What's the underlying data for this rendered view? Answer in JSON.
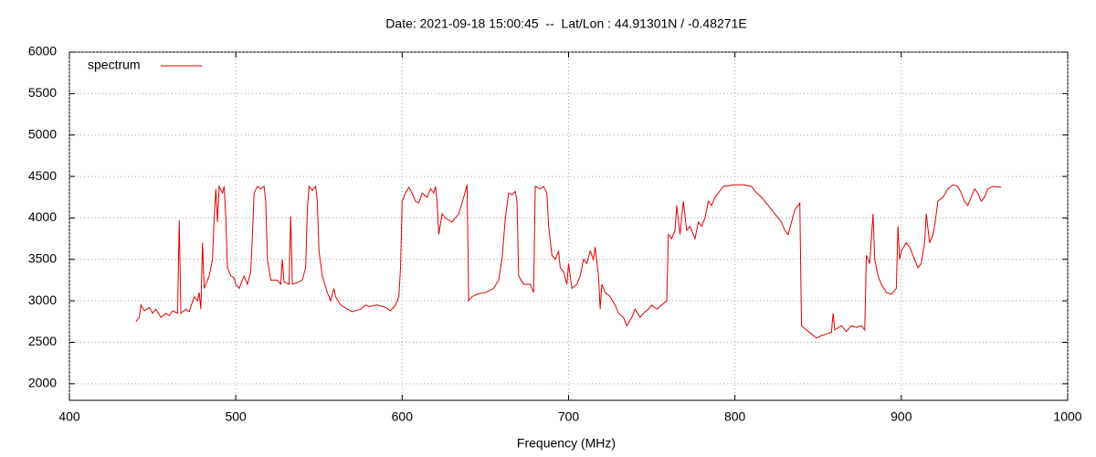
{
  "chart_data": {
    "type": "line",
    "title": "Date: 2021-09-18 15:00:45  --  Lat/Lon : 44.91301N / -0.48271E",
    "x_label": "Frequency (MHz)",
    "xlim": [
      400,
      1000
    ],
    "xticks": [
      400,
      500,
      600,
      700,
      800,
      900,
      1000
    ],
    "ylim": [
      1800,
      6000
    ],
    "yticks": [
      2000,
      2500,
      3000,
      3500,
      4000,
      4500,
      5000,
      5500,
      6000
    ],
    "grid": true,
    "legend": "top-left",
    "x": [
      440,
      442,
      443,
      445,
      448,
      450,
      452,
      455,
      458,
      460,
      462,
      465,
      466,
      467,
      470,
      472,
      475,
      477,
      478,
      479,
      480,
      481,
      484,
      486,
      487,
      488,
      489,
      490,
      492,
      493,
      494,
      495,
      497,
      499,
      500,
      502,
      505,
      507,
      509,
      510,
      511,
      513,
      515,
      517,
      518,
      519,
      521,
      525,
      527,
      528,
      529,
      532,
      533,
      534,
      537,
      540,
      542,
      543,
      544,
      546,
      548,
      549,
      550,
      552,
      555,
      557,
      559,
      560,
      563,
      567,
      570,
      575,
      578,
      580,
      585,
      590,
      593,
      596,
      598,
      599,
      600,
      602,
      604,
      606,
      608,
      610,
      612,
      615,
      617,
      619,
      620,
      621,
      622,
      624,
      626,
      630,
      634,
      637,
      639,
      640,
      642,
      645,
      650,
      655,
      658,
      660,
      662,
      664,
      666,
      668,
      669,
      670,
      673,
      677,
      679,
      680,
      683,
      685,
      687,
      688,
      690,
      692,
      694,
      695,
      697,
      699,
      700,
      702,
      705,
      707,
      709,
      711,
      713,
      715,
      716,
      718,
      719,
      720,
      722,
      725,
      728,
      730,
      733,
      735,
      738,
      740,
      743,
      745,
      748,
      750,
      753,
      756,
      759,
      760,
      762,
      764,
      765,
      767,
      769,
      771,
      773,
      776,
      778,
      780,
      782,
      784,
      786,
      788,
      790,
      793,
      797,
      800,
      805,
      810,
      813,
      816,
      818,
      820,
      822,
      824,
      826,
      828,
      830,
      832,
      834,
      836,
      838,
      839,
      840,
      843,
      846,
      849,
      852,
      855,
      858,
      859,
      860,
      864,
      867,
      870,
      873,
      876,
      878,
      879,
      881,
      883,
      884,
      886,
      888,
      891,
      894,
      897,
      898,
      899,
      900,
      903,
      905,
      908,
      910,
      912,
      914,
      915,
      917,
      919,
      920,
      922,
      925,
      928,
      931,
      934,
      936,
      938,
      940,
      942,
      944,
      946,
      948,
      950,
      952,
      955,
      960
    ],
    "series": [
      {
        "name": "spectrum",
        "color": "#e00000",
        "values": [
          2750,
          2800,
          2950,
          2880,
          2920,
          2850,
          2900,
          2800,
          2850,
          2820,
          2880,
          2850,
          3970,
          2850,
          2900,
          2870,
          3050,
          3000,
          3100,
          2900,
          3700,
          3150,
          3300,
          3500,
          4000,
          4350,
          3950,
          4380,
          4300,
          4380,
          4000,
          3400,
          3300,
          3280,
          3200,
          3150,
          3300,
          3200,
          3350,
          3800,
          4300,
          4380,
          4350,
          4380,
          4200,
          3500,
          3250,
          3250,
          3200,
          3500,
          3230,
          3200,
          4020,
          3200,
          3220,
          3250,
          3400,
          4100,
          4380,
          4330,
          4380,
          4200,
          3600,
          3300,
          3100,
          3000,
          3150,
          3050,
          2950,
          2900,
          2870,
          2900,
          2950,
          2930,
          2950,
          2920,
          2880,
          2950,
          3050,
          3400,
          4200,
          4300,
          4370,
          4300,
          4200,
          4180,
          4300,
          4250,
          4350,
          4300,
          4380,
          4200,
          3800,
          4050,
          4000,
          3950,
          4050,
          4250,
          4400,
          3000,
          3050,
          3080,
          3100,
          3150,
          3250,
          3500,
          4000,
          4300,
          4280,
          4320,
          4200,
          3300,
          3200,
          3200,
          3100,
          4380,
          4350,
          4380,
          4300,
          3900,
          3550,
          3500,
          3600,
          3400,
          3350,
          3200,
          3450,
          3150,
          3200,
          3300,
          3500,
          3450,
          3600,
          3500,
          3650,
          3300,
          2900,
          3200,
          3100,
          3050,
          2950,
          2850,
          2800,
          2700,
          2800,
          2900,
          2800,
          2850,
          2900,
          2950,
          2900,
          2950,
          3000,
          3800,
          3750,
          3850,
          4150,
          3800,
          4200,
          3850,
          3900,
          3750,
          3950,
          3900,
          4000,
          4200,
          4150,
          4250,
          4300,
          4380,
          4390,
          4400,
          4400,
          4380,
          4300,
          4250,
          4200,
          4150,
          4100,
          4050,
          4000,
          3950,
          3850,
          3800,
          3950,
          4100,
          4150,
          4180,
          2700,
          2650,
          2600,
          2550,
          2580,
          2600,
          2620,
          2850,
          2650,
          2700,
          2630,
          2700,
          2680,
          2700,
          2650,
          3550,
          3450,
          4050,
          3500,
          3300,
          3200,
          3100,
          3080,
          3150,
          3900,
          3500,
          3600,
          3700,
          3650,
          3500,
          3400,
          3450,
          3700,
          4050,
          3700,
          3800,
          3900,
          4200,
          4250,
          4350,
          4400,
          4380,
          4300,
          4200,
          4150,
          4250,
          4350,
          4300,
          4200,
          4250,
          4350,
          4380,
          4370
        ]
      }
    ]
  }
}
